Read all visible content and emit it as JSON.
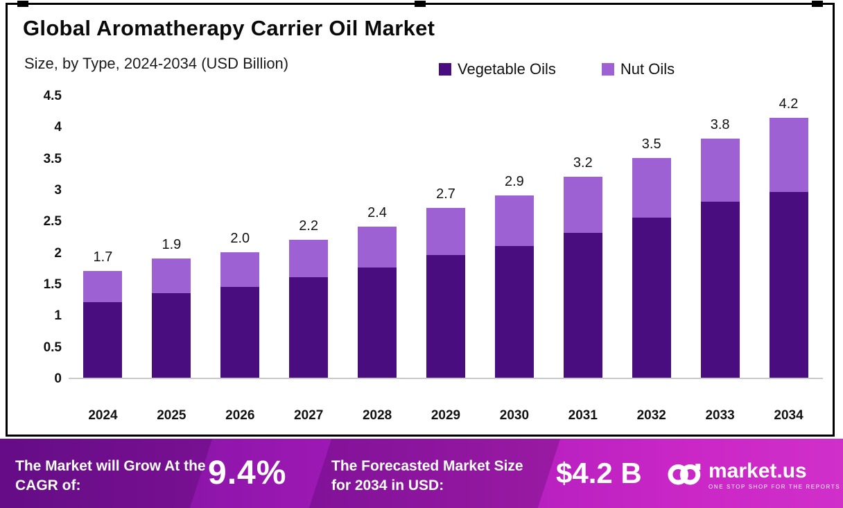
{
  "header": {
    "title": "Global Aromatherapy Carrier Oil Market",
    "subtitle": "Size, by Type, 2024-2034 (USD Billion)"
  },
  "legend": [
    {
      "label": "Vegetable Oils",
      "color": "#4a0d7f"
    },
    {
      "label": "Nut Oils",
      "color": "#9d61d4"
    }
  ],
  "chart_data": {
    "type": "bar",
    "stacked": true,
    "title": "Global Aromatherapy Carrier Oil Market Size, by Type, 2024-2034 (USD Billion)",
    "categories": [
      "2024",
      "2025",
      "2026",
      "2027",
      "2028",
      "2029",
      "2030",
      "2031",
      "2032",
      "2033",
      "2034"
    ],
    "series": [
      {
        "name": "Vegetable Oils",
        "color": "#4a0d7f",
        "values": [
          1.2,
          1.35,
          1.45,
          1.6,
          1.75,
          1.95,
          2.1,
          2.3,
          2.55,
          2.8,
          3.0
        ]
      },
      {
        "name": "Nut Oils",
        "color": "#9d61d4",
        "values": [
          0.5,
          0.55,
          0.55,
          0.6,
          0.65,
          0.75,
          0.8,
          0.9,
          0.95,
          1.0,
          1.2
        ]
      }
    ],
    "totals": [
      "1.7",
      "1.9",
      "2.0",
      "2.2",
      "2.4",
      "2.7",
      "2.9",
      "3.2",
      "3.5",
      "3.8",
      "4.2"
    ],
    "ylim": [
      0,
      4.5
    ],
    "yticks": [
      0,
      0.5,
      1,
      1.5,
      2,
      2.5,
      3,
      3.5,
      4,
      4.5
    ],
    "ytick_labels": [
      "0",
      "0.5",
      "1",
      "1.5",
      "2",
      "2.5",
      "3",
      "3.5",
      "4",
      "4.5"
    ],
    "grid": false,
    "legend_position": "top"
  },
  "footer": {
    "cagr_label": "The Market will Grow At the CAGR of:",
    "cagr_value": "9.4%",
    "forecast_label": "The Forecasted Market Size for 2034 in USD:",
    "forecast_value": "$4.2 B",
    "brand": "market.us",
    "brand_tagline": "ONE STOP SHOP FOR THE REPORTS"
  }
}
